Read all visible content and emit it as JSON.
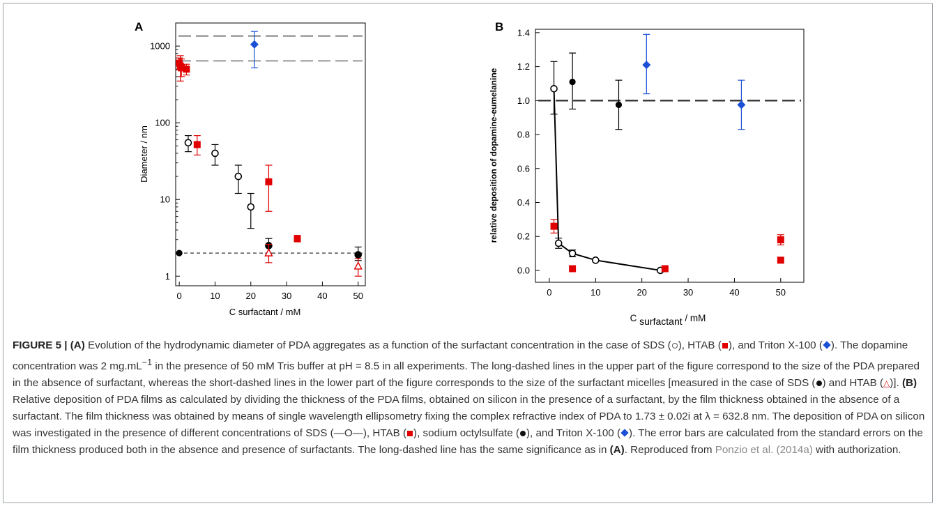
{
  "chart_data": [
    {
      "panel": "A",
      "type": "scatter",
      "xlabel": "C surfactant / mM",
      "ylabel": "Diameter / nm",
      "xlim": [
        -1,
        52
      ],
      "ylim": [
        0.75,
        2000
      ],
      "yscale": "log",
      "xticks": [
        0,
        10,
        20,
        30,
        40,
        50
      ],
      "yticks": [
        1,
        10,
        100,
        1000
      ],
      "grid": false,
      "legend": "none",
      "reference_lines": [
        {
          "style": "long-dash",
          "y": 1350
        },
        {
          "style": "long-dash",
          "y": 640
        },
        {
          "style": "short-dash",
          "y": 2.0
        }
      ],
      "series": [
        {
          "marker": "open-circle",
          "color": "#000000",
          "points": [
            {
              "x": 2.5,
              "y": 55,
              "lo": 42,
              "hi": 68
            },
            {
              "x": 10,
              "y": 40,
              "lo": 28,
              "hi": 52
            },
            {
              "x": 16.5,
              "y": 20,
              "lo": 12,
              "hi": 28
            },
            {
              "x": 20,
              "y": 8,
              "lo": 4.2,
              "hi": 12
            },
            {
              "x": 25,
              "y": 2.5,
              "lo": 2.0,
              "hi": 3.1
            },
            {
              "x": 50,
              "y": 1.9,
              "lo": 1.6,
              "hi": 2.4
            }
          ]
        },
        {
          "marker": "filled-square",
          "color": "#e00000",
          "points": [
            {
              "x": 0,
              "y": 600,
              "lo": 490,
              "hi": 700
            },
            {
              "x": 0.3,
              "y": 550,
              "lo": 350,
              "hi": 750
            },
            {
              "x": 0.6,
              "y": 520,
              "lo": 400,
              "hi": 680
            },
            {
              "x": 2,
              "y": 500,
              "lo": 420,
              "hi": 580
            },
            {
              "x": 5,
              "y": 52,
              "lo": 38,
              "hi": 68
            },
            {
              "x": 25,
              "y": 17,
              "lo": 7,
              "hi": 28
            },
            {
              "x": 33,
              "y": 3.1,
              "lo": 2.8,
              "hi": 3.4
            }
          ]
        },
        {
          "marker": "filled-diamond",
          "color": "#1a4fd6",
          "points": [
            {
              "x": 21,
              "y": 1050,
              "lo": 520,
              "hi": 1550
            }
          ]
        },
        {
          "marker": "filled-circle",
          "color": "#000000",
          "points": [
            {
              "x": 0,
              "y": 2.0
            },
            {
              "x": 25,
              "y": 2.5
            },
            {
              "x": 50,
              "y": 1.9
            }
          ]
        },
        {
          "marker": "open-triangle",
          "color": "#e00000",
          "points": [
            {
              "x": 25,
              "y": 2.0,
              "lo": 1.5,
              "hi": 2.6
            },
            {
              "x": 50,
              "y": 1.35,
              "lo": 1.0,
              "hi": 1.7
            }
          ]
        }
      ]
    },
    {
      "panel": "B",
      "type": "scatter",
      "xlabel": "C surfactant / mM",
      "ylabel": "relative deposition of dopamine-eumelanine",
      "xlim": [
        -3,
        55
      ],
      "ylim": [
        -0.07,
        1.42
      ],
      "xticks": [
        0,
        10,
        20,
        30,
        40,
        50
      ],
      "yticks": [
        0.0,
        0.2,
        0.4,
        0.6,
        0.8,
        1.0,
        1.2,
        1.4
      ],
      "grid": false,
      "legend": "none",
      "reference_lines": [
        {
          "style": "long-dash",
          "y": 1.0
        }
      ],
      "series": [
        {
          "marker": "open-circle-line",
          "color": "#000000",
          "points": [
            {
              "x": 1,
              "y": 1.07,
              "lo": 0.92,
              "hi": 1.23
            },
            {
              "x": 2,
              "y": 0.16,
              "lo": 0.13,
              "hi": 0.19
            },
            {
              "x": 5,
              "y": 0.1,
              "lo": 0.08,
              "hi": 0.12
            },
            {
              "x": 10,
              "y": 0.06
            },
            {
              "x": 24,
              "y": 0.0
            }
          ]
        },
        {
          "marker": "filled-square",
          "color": "#e00000",
          "points": [
            {
              "x": 1,
              "y": 0.26,
              "lo": 0.22,
              "hi": 0.3
            },
            {
              "x": 5,
              "y": 0.01
            },
            {
              "x": 25,
              "y": 0.01
            },
            {
              "x": 50,
              "y": 0.18,
              "lo": 0.15,
              "hi": 0.21
            },
            {
              "x": 50,
              "y": 0.06
            }
          ]
        },
        {
          "marker": "filled-circle",
          "color": "#000000",
          "points": [
            {
              "x": 5,
              "y": 1.11,
              "lo": 0.95,
              "hi": 1.28
            },
            {
              "x": 15,
              "y": 0.975,
              "lo": 0.83,
              "hi": 1.12
            }
          ]
        },
        {
          "marker": "filled-diamond",
          "color": "#1a4fd6",
          "points": [
            {
              "x": 21,
              "y": 1.21,
              "lo": 1.04,
              "hi": 1.39
            },
            {
              "x": 41.5,
              "y": 0.975,
              "lo": 0.83,
              "hi": 1.12
            }
          ]
        }
      ]
    }
  ],
  "panelA": {
    "letter": "A",
    "xlabel": "C surfactant / mM",
    "ylabel": "Diameter / nm"
  },
  "panelB": {
    "letter": "B",
    "xlabel_c": "C",
    "xlabel_sub": "surfactant",
    "xlabel_unit": " / mM",
    "ylabel": "relative deposition of dopamine-eumelanine"
  },
  "caption": {
    "fig": "FIGURE 5 | ",
    "a_tag": "(A)",
    "p1": " Evolution of the hydrodynamic diameter of PDA aggregates as a function of the surfactant concentration in the case of SDS (",
    "p2": "), HTAB (",
    "p3": "), and Triton X-100 (",
    "p4": "). The dopamine concentration was 2 mg.mL",
    "p4_sup": "−1",
    "p5": " in the presence of 50 mM Tris buffer at pH = 8.5 in all experiments. The long-dashed lines in the upper part of the figure correspond to the size of the PDA prepared in the absence of surfactant, whereas the short-dashed lines in the lower part of the figure corresponds to the size of the surfactant micelles [measured in the case of SDS (",
    "p6": ") and HTAB (",
    "p6_tri": "△",
    "p7": ")]. ",
    "b_tag": "(B)",
    "p8": " Relative deposition of PDA films as calculated by dividing the thickness of the PDA films, obtained on silicon in the presence of a surfactant, by the film thickness obtained in the absence of a surfactant. The film thickness was obtained by means of single wavelength ellipsometry fixing the complex refractive index of PDA to 1.73 ± 0.02i at λ = 632.8 nm. The deposition of PDA on silicon was investigated in the presence of different concentrations of SDS (",
    "p8_line": "—O—",
    "p9": "), HTAB (",
    "p10": "), sodium octylsulfate (",
    "p11": "), and Triton X-100 (",
    "p12": "). The error bars are calculated from the standard errors on the film thickness produced both in the absence and presence of surfactants. The long-dashed line has the same significance as in ",
    "a_ref": "(A)",
    "p13": ". Reproduced from ",
    "ref": "Ponzio et al. (2014a)",
    "p14": " with authorization."
  }
}
